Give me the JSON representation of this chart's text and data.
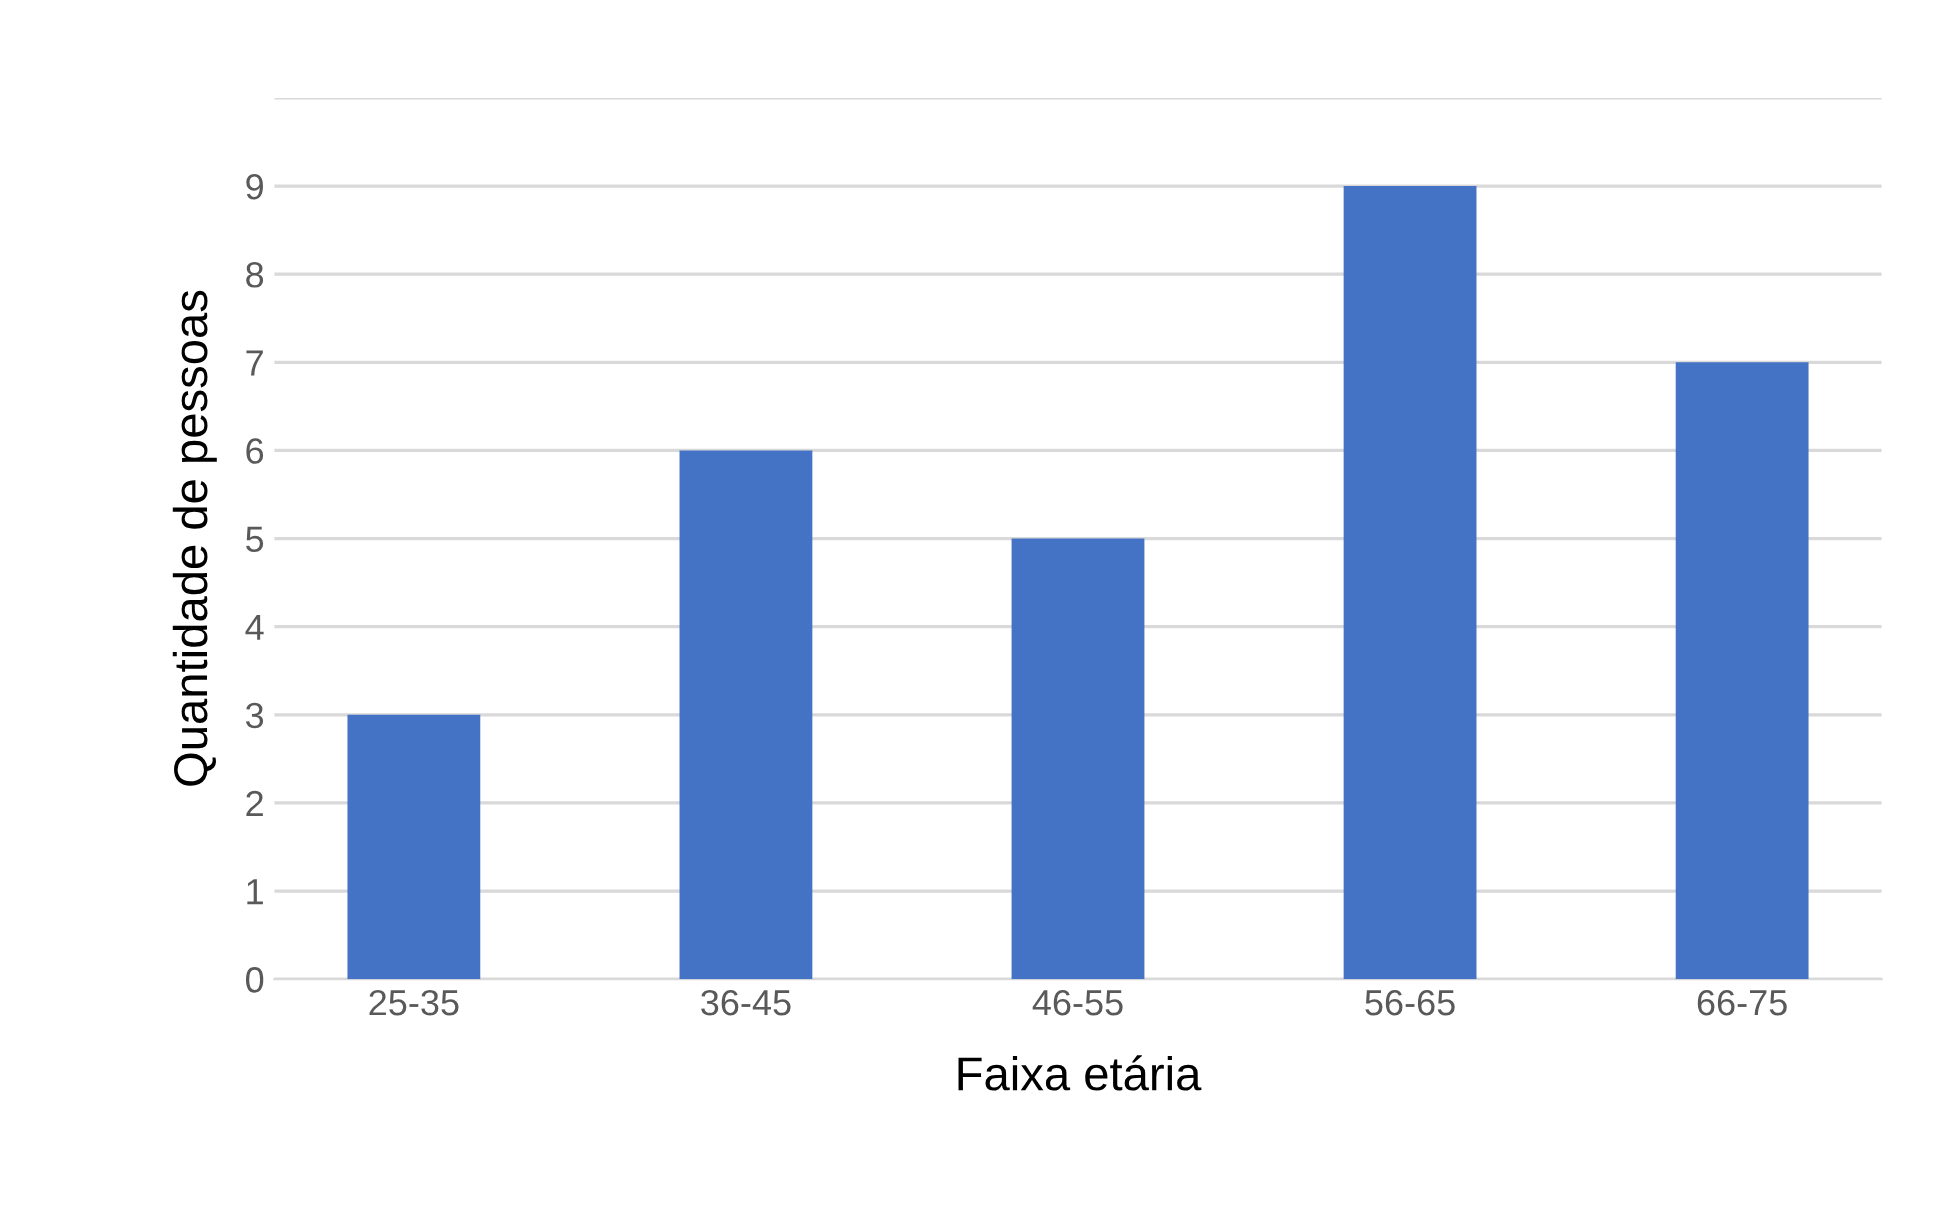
{
  "chart_data": {
    "type": "bar",
    "xlabel": "Faixa etária",
    "ylabel": "Quantidade de pessoas",
    "categories": [
      "25-35",
      "36-45",
      "46-55",
      "56-65",
      "66-75"
    ],
    "values": [
      3,
      6,
      5,
      9,
      7
    ],
    "color": "#4472c4",
    "ylim": [
      0,
      10
    ],
    "yticks": [
      0,
      1,
      2,
      3,
      4,
      5,
      6,
      7,
      8,
      9,
      {
        "value": 10,
        "label": null
      }
    ],
    "grid": "y",
    "legend": false
  }
}
